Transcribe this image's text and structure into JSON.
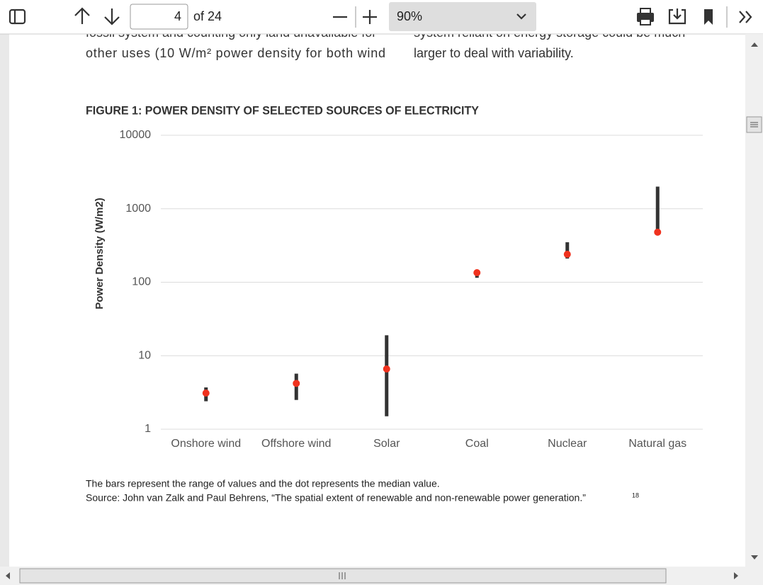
{
  "toolbar": {
    "page_number": "4",
    "page_count": "of 24",
    "zoom": "90%"
  },
  "body_text": {
    "left": [
      "fossil system and counting only land unavailable for",
      "other uses (10 W/m² power density for both wind"
    ],
    "right": [
      "system reliant on energy storage could be much",
      "larger to deal with variability."
    ]
  },
  "chart_data": {
    "type": "range",
    "title": "FIGURE 1: POWER DENSITY OF SELECTED SOURCES OF ELECTRICITY",
    "y_label": "Power Density (W/m2)",
    "categories": [
      "Onshore wind",
      "Offshore wind",
      "Solar",
      "Coal",
      "Nuclear",
      "Natural gas"
    ],
    "low": [
      2.4,
      2.5,
      1.5,
      115,
      210,
      450
    ],
    "high": [
      3.7,
      5.7,
      19,
      140,
      350,
      2000
    ],
    "median": [
      3.1,
      4.2,
      6.6,
      135,
      240,
      480
    ],
    "ylim": [
      1,
      10000
    ],
    "yticks": [
      1,
      10,
      100,
      1000,
      10000
    ],
    "log_scale": true,
    "grid": true,
    "range_color": "#333333",
    "median_color": "#f0321e"
  },
  "caption": {
    "note": "The bars represent the range of values and the dot represents the median value.",
    "source": "Source: John van Zalk and Paul Behrens, “The spatial extent of renewable and non-renewable power generation.”",
    "footnote": "18"
  }
}
